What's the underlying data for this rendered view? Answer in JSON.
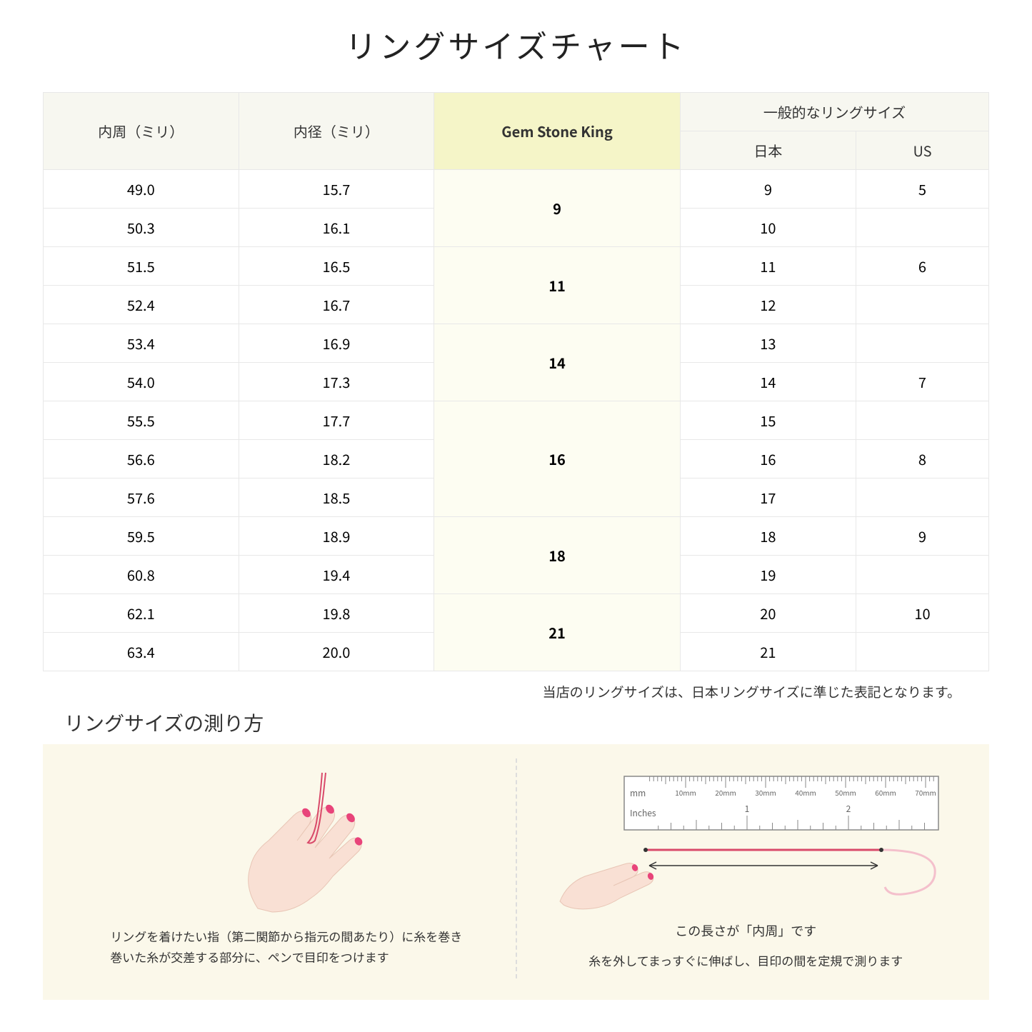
{
  "title": "リングサイズチャート",
  "table": {
    "headers": {
      "circumference": "内周（ミリ）",
      "diameter": "内径（ミリ）",
      "gsk": "Gem Stone King",
      "general": "一般的なリングサイズ",
      "japan": "日本",
      "us": "US"
    },
    "groups": [
      {
        "gsk": "9",
        "rows": [
          {
            "c": "49.0",
            "d": "15.7",
            "jp": "9",
            "us": "5"
          },
          {
            "c": "50.3",
            "d": "16.1",
            "jp": "10",
            "us": ""
          }
        ]
      },
      {
        "gsk": "11",
        "rows": [
          {
            "c": "51.5",
            "d": "16.5",
            "jp": "11",
            "us": "6"
          },
          {
            "c": "52.4",
            "d": "16.7",
            "jp": "12",
            "us": ""
          }
        ]
      },
      {
        "gsk": "14",
        "rows": [
          {
            "c": "53.4",
            "d": "16.9",
            "jp": "13",
            "us": ""
          },
          {
            "c": "54.0",
            "d": "17.3",
            "jp": "14",
            "us": "7"
          }
        ]
      },
      {
        "gsk": "16",
        "rows": [
          {
            "c": "55.5",
            "d": "17.7",
            "jp": "15",
            "us": ""
          },
          {
            "c": "56.6",
            "d": "18.2",
            "jp": "16",
            "us": "8"
          },
          {
            "c": "57.6",
            "d": "18.5",
            "jp": "17",
            "us": ""
          }
        ]
      },
      {
        "gsk": "18",
        "rows": [
          {
            "c": "59.5",
            "d": "18.9",
            "jp": "18",
            "us": "9"
          },
          {
            "c": "60.8",
            "d": "19.4",
            "jp": "19",
            "us": ""
          }
        ]
      },
      {
        "gsk": "21",
        "rows": [
          {
            "c": "62.1",
            "d": "19.8",
            "jp": "20",
            "us": "10"
          },
          {
            "c": "63.4",
            "d": "20.0",
            "jp": "21",
            "us": ""
          }
        ]
      }
    ]
  },
  "note": "当店のリングサイズは、日本リングサイズに準じた表記となります。",
  "howto": {
    "title": "リングサイズの測り方",
    "left_text": "リングを着けたい指（第二関節から指元の間あたり）に糸を巻き\n巻いた糸が交差する部分に、ペンで目印をつけます",
    "right_label": "この長さが「内周」です",
    "right_text": "糸を外してまっすぐに伸ばし、目印の間を定規で測ります",
    "ruler": {
      "mm_label": "mm",
      "inches_label": "Inches",
      "mm_ticks": [
        "10mm",
        "20mm",
        "30mm",
        "40mm",
        "50mm",
        "60mm",
        "70mm"
      ],
      "inch_ticks": [
        "1",
        "2"
      ]
    }
  },
  "colors": {
    "header_bg": "#f7f7f0",
    "gsk_header_bg": "#f5f5c8",
    "gsk_cell_bg": "#fdfdf2",
    "border": "#e8e8e8",
    "howto_bg": "#fbf8ea",
    "hand_fill": "#f9e0d4",
    "nail_fill": "#e8447a",
    "thread": "#d94a6a",
    "ruler_stroke": "#888"
  }
}
